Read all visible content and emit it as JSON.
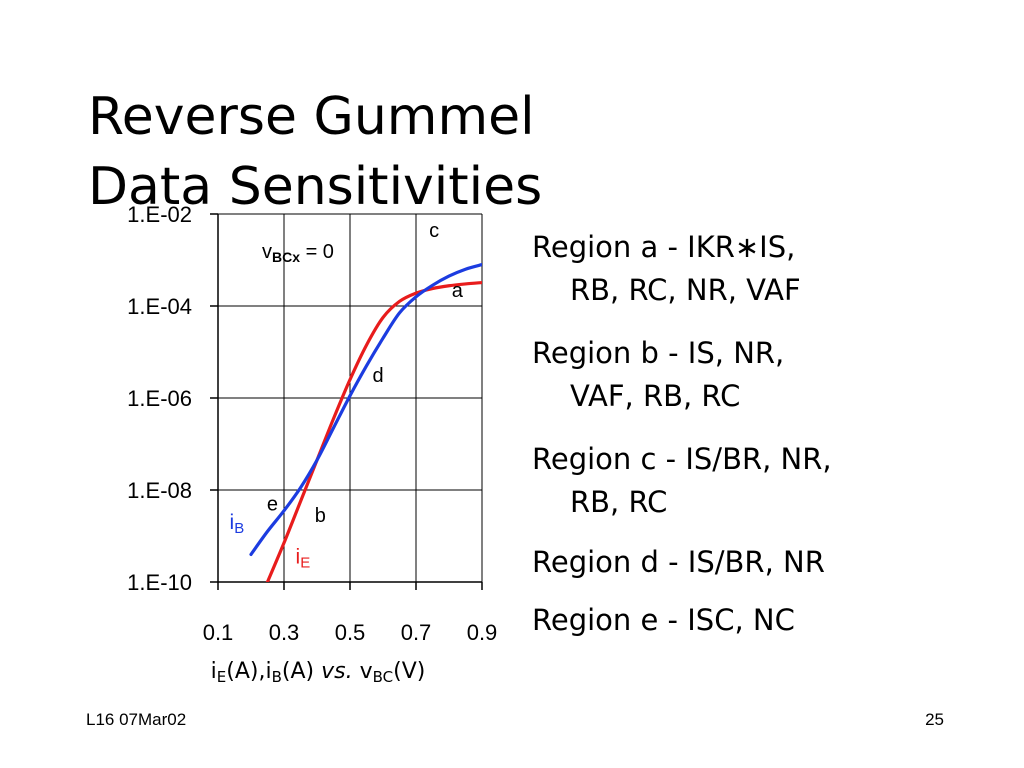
{
  "slide": {
    "title_lines": [
      "Reverse Gummel",
      "Data Sensitivities"
    ],
    "regions": [
      {
        "line1": "Region a - IKR∗IS,",
        "line2": "RB, RC, NR, VAF"
      },
      {
        "line1": "Region b - IS, NR,",
        "line2": "VAF, RB, RC"
      },
      {
        "line1": "Region c - IS/BR, NR,",
        "line2": "RB, RC"
      },
      {
        "line1": "Region d - IS/BR, NR",
        "line2": ""
      },
      {
        "line1": "Region e - ISC, NC",
        "line2": ""
      }
    ],
    "footer_left": "L16 07Mar02",
    "footer_right": "25"
  },
  "chart_data": {
    "type": "line",
    "x_tick_labels": [
      "0.1",
      "0.3",
      "0.5",
      "0.7",
      "0.9"
    ],
    "x_ticks": [
      0.1,
      0.3,
      0.5,
      0.7,
      0.9
    ],
    "xlim": [
      0.1,
      0.9
    ],
    "y_tick_labels": [
      "1.E-10",
      "1.E-08",
      "1.E-06",
      "1.E-04",
      "1.E-02"
    ],
    "y_ticks": [
      -10,
      -8,
      -6,
      -4,
      -2
    ],
    "ylim": [
      -10,
      -2
    ],
    "y_scale": "log",
    "xlabel": {
      "parts": [
        {
          "t": "i",
          "sub": false
        },
        {
          "t": "E",
          "sub": true
        },
        {
          "t": "(A),i",
          "sub": false
        },
        {
          "t": "B",
          "sub": true
        },
        {
          "t": "(A) ",
          "sub": false
        },
        {
          "t": "vs.",
          "sub": false,
          "italic": true
        },
        {
          "t": " v",
          "sub": false
        },
        {
          "t": "BC",
          "sub": true
        },
        {
          "t": "(V)",
          "sub": false
        }
      ]
    },
    "annotation": {
      "main": "v",
      "sub": "BCx",
      "rest": " = 0"
    },
    "grid": true,
    "series": [
      {
        "name_main": "i",
        "name_sub": "B",
        "color": "#1c3ce0",
        "points": [
          [
            0.2,
            -9.4
          ],
          [
            0.25,
            -8.9
          ],
          [
            0.3,
            -8.45
          ],
          [
            0.35,
            -7.95
          ],
          [
            0.4,
            -7.35
          ],
          [
            0.45,
            -6.65
          ],
          [
            0.5,
            -5.95
          ],
          [
            0.55,
            -5.3
          ],
          [
            0.6,
            -4.7
          ],
          [
            0.65,
            -4.15
          ],
          [
            0.7,
            -3.8
          ],
          [
            0.75,
            -3.55
          ],
          [
            0.8,
            -3.35
          ],
          [
            0.85,
            -3.2
          ],
          [
            0.9,
            -3.1
          ]
        ]
      },
      {
        "name_main": "i",
        "name_sub": "E",
        "color": "#e81c1c",
        "points": [
          [
            0.25,
            -10.0
          ],
          [
            0.3,
            -9.15
          ],
          [
            0.35,
            -8.25
          ],
          [
            0.4,
            -7.35
          ],
          [
            0.45,
            -6.45
          ],
          [
            0.5,
            -5.6
          ],
          [
            0.55,
            -4.85
          ],
          [
            0.6,
            -4.25
          ],
          [
            0.65,
            -3.9
          ],
          [
            0.7,
            -3.72
          ],
          [
            0.75,
            -3.62
          ],
          [
            0.8,
            -3.56
          ],
          [
            0.85,
            -3.52
          ],
          [
            0.9,
            -3.49
          ]
        ]
      }
    ],
    "region_labels": [
      {
        "text": "c",
        "x": 0.755,
        "y": -2.5
      },
      {
        "text": "a",
        "x": 0.825,
        "y": -3.8
      },
      {
        "text": "d",
        "x": 0.585,
        "y": -5.65
      },
      {
        "text": "e",
        "x": 0.265,
        "y": -8.45
      },
      {
        "text": "b",
        "x": 0.41,
        "y": -8.7
      }
    ],
    "series_labels": [
      {
        "main": "i",
        "sub": "B",
        "x": 0.135,
        "y": -8.85,
        "color": "#1c3ce0"
      },
      {
        "main": "i",
        "sub": "E",
        "x": 0.335,
        "y": -9.6,
        "color": "#e81c1c"
      }
    ]
  }
}
